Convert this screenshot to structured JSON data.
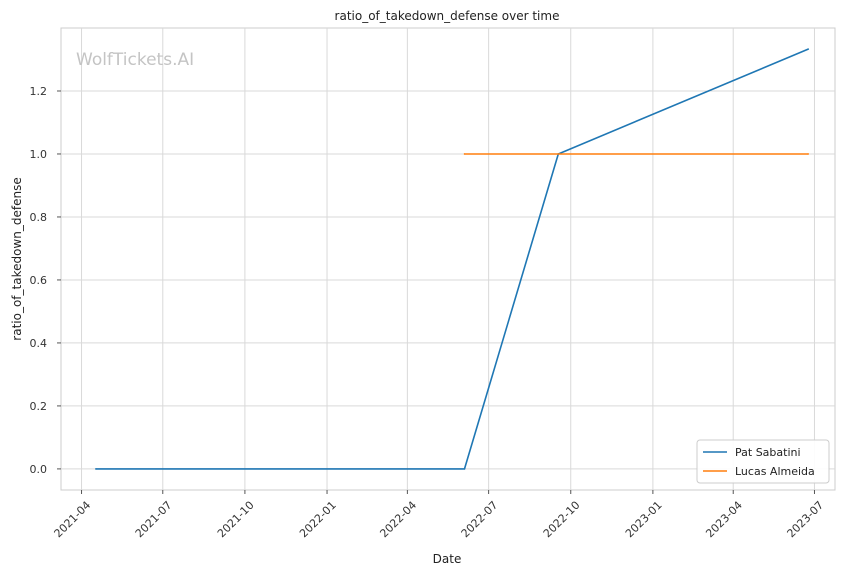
{
  "chart_data": {
    "type": "line",
    "title": "ratio_of_takedown_defense over time",
    "xlabel": "Date",
    "ylabel": "ratio_of_takedown_defense",
    "watermark": "WolfTickets.AI",
    "x_ticks": [
      "2021-04",
      "2021-07",
      "2021-10",
      "2022-01",
      "2022-04",
      "2022-07",
      "2022-10",
      "2023-01",
      "2023-04",
      "2023-07"
    ],
    "y_ticks": [
      "0.0",
      "0.2",
      "0.4",
      "0.6",
      "0.8",
      "1.0",
      "1.2"
    ],
    "xlim": [
      "2021-03-09",
      "2023-07-24"
    ],
    "ylim": [
      -0.067,
      1.4
    ],
    "grid": true,
    "legend_position": "bottom-right",
    "series": [
      {
        "name": "Pat Sabatini",
        "color": "#1f77b4",
        "points": [
          {
            "x": "2021-04-17",
            "y": 0.0
          },
          {
            "x": "2022-06-04",
            "y": 0.0
          },
          {
            "x": "2022-09-17",
            "y": 1.0
          },
          {
            "x": "2023-06-24",
            "y": 1.333
          }
        ]
      },
      {
        "name": "Lucas Almeida",
        "color": "#ff7f0e",
        "points": [
          {
            "x": "2022-06-04",
            "y": 1.0
          },
          {
            "x": "2023-06-24",
            "y": 1.0
          }
        ]
      }
    ]
  }
}
